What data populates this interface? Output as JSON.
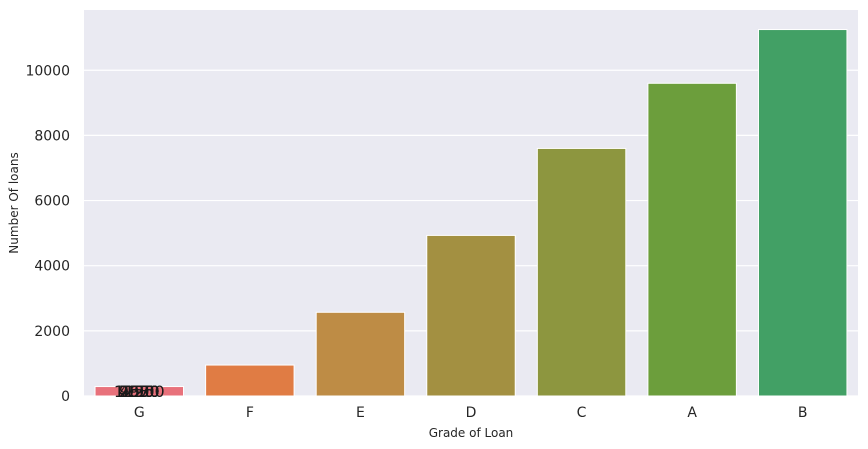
{
  "chart_data": {
    "type": "bar",
    "categories": [
      "G",
      "F",
      "E",
      "D",
      "C",
      "A",
      "B"
    ],
    "values": [
      290,
      950,
      2570,
      4930,
      7600,
      9600,
      11250
    ],
    "colors": [
      "#e8717b",
      "#e07c44",
      "#be8c45",
      "#a39041",
      "#8d963f",
      "#6c9e3c",
      "#42a065"
    ],
    "xlabel": "Grade of Loan",
    "ylabel": "Number Of loans",
    "ylim": [
      0,
      11850
    ],
    "yticks": [
      0,
      2000,
      4000,
      6000,
      8000,
      10000
    ],
    "grid": true,
    "background": "#eaeaf2",
    "overlapping_labels": [
      "290",
      "950",
      "2570",
      "4930",
      "7600",
      "9600",
      "11250"
    ]
  }
}
